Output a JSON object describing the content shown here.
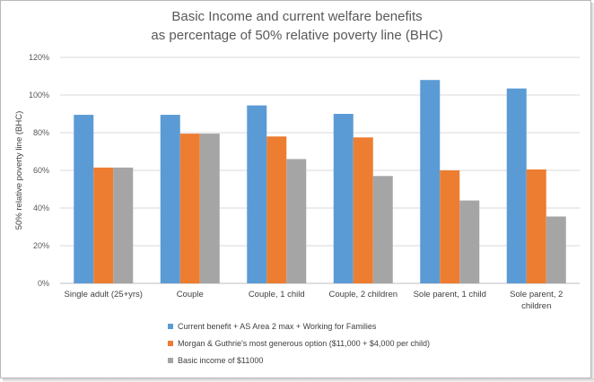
{
  "chart_data": {
    "type": "bar",
    "title": [
      "Basic Income and current welfare benefits",
      "as percentage of 50% relative poverty line (BHC)"
    ],
    "xlabel": "",
    "ylabel": "50% relative poverty line (BHC)",
    "ylim": [
      0,
      1.2
    ],
    "yticks": [
      {
        "value": 0,
        "label": "0%"
      },
      {
        "value": 0.2,
        "label": "20%"
      },
      {
        "value": 0.4,
        "label": "40%"
      },
      {
        "value": 0.6,
        "label": "60%"
      },
      {
        "value": 0.8,
        "label": "80%"
      },
      {
        "value": 1.0,
        "label": "100%"
      },
      {
        "value": 1.2,
        "label": "120%"
      }
    ],
    "grid": true,
    "legend_position": "bottom",
    "categories": [
      [
        "Single adult (25+yrs)"
      ],
      [
        "Couple"
      ],
      [
        "Couple, 1 child"
      ],
      [
        "Couple, 2 children"
      ],
      [
        "Sole parent, 1 child"
      ],
      [
        "Sole parent, 2",
        "children"
      ]
    ],
    "series": [
      {
        "name": "Current benefit + AS Area 2 max + Working for Families",
        "color": "#5b9bd5",
        "values": [
          0.895,
          0.895,
          0.945,
          0.9,
          1.08,
          1.035
        ]
      },
      {
        "name": "Morgan & Guthrie's most generous option ($11,000 + $4,000 per child)",
        "color": "#ed7d31",
        "values": [
          0.615,
          0.795,
          0.78,
          0.775,
          0.6,
          0.605
        ]
      },
      {
        "name": "Basic income of $11000",
        "color": "#a5a5a5",
        "values": [
          0.615,
          0.795,
          0.66,
          0.57,
          0.44,
          0.355
        ]
      }
    ]
  }
}
